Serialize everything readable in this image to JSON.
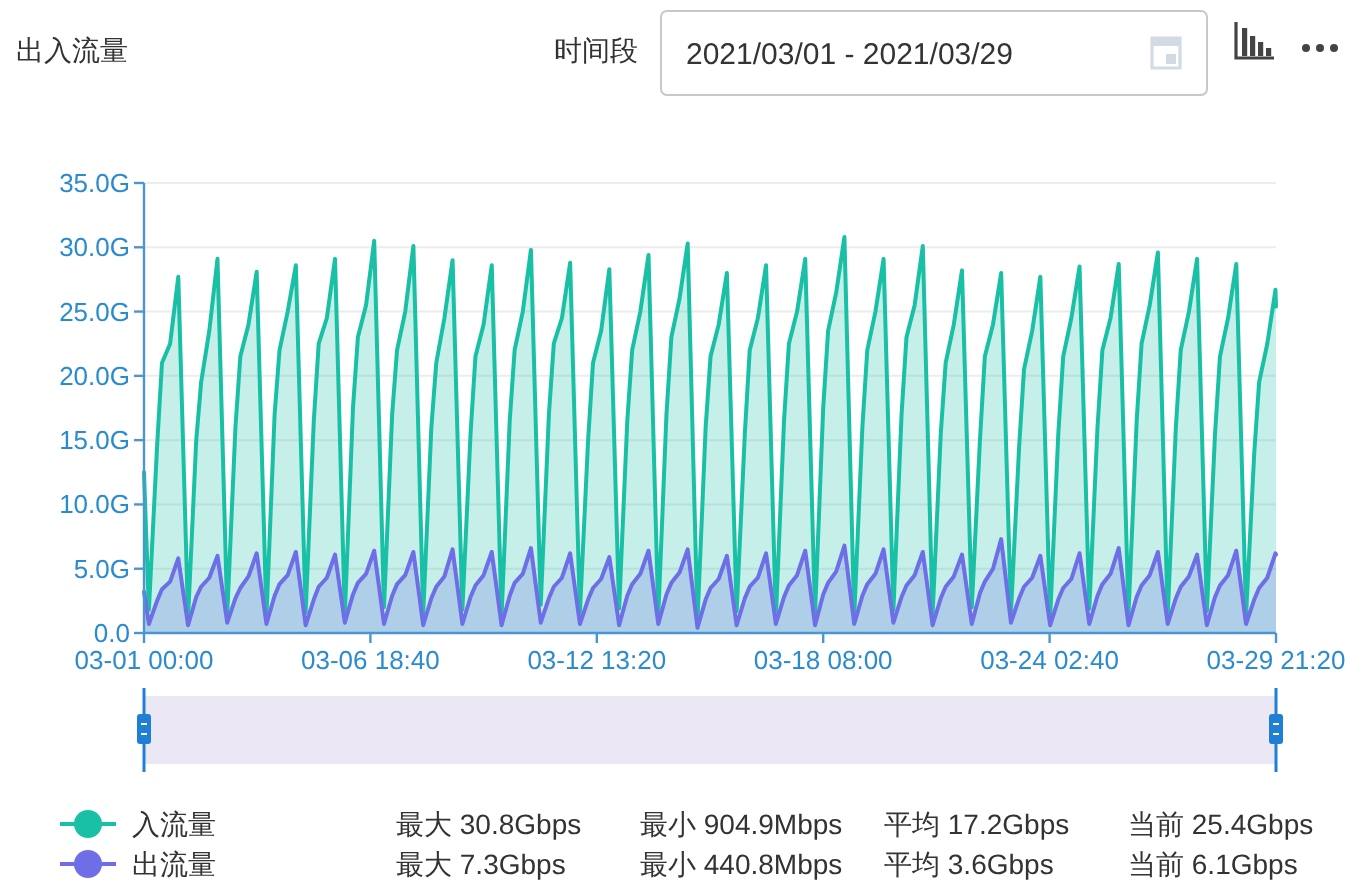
{
  "chart_data": {
    "type": "area",
    "title": "出入流量",
    "annotations": [
      "时间段",
      "2021/03/01 - 2021/03/29",
      "最大 30.8Gbps",
      "最小 904.9Mbps",
      "平均 17.2Gbps",
      "当前 25.4Gbps",
      "最大 7.3Gbps",
      "最小 440.8Mbps",
      "平均 3.6Gbps",
      "当前 6.1Gbps"
    ],
    "x": [
      "2021-03-01T00:00",
      "2021-03-01T03:00",
      "2021-03-01T08:00",
      "2021-03-01T11:00",
      "2021-03-01T16:00",
      "2021-03-01T21:00",
      "2021-03-02T03:00",
      "2021-03-02T08:00",
      "2021-03-02T11:00",
      "2021-03-02T16:00",
      "2021-03-02T21:00",
      "2021-03-03T03:00",
      "2021-03-03T08:00",
      "2021-03-03T11:00",
      "2021-03-03T16:00",
      "2021-03-03T21:00",
      "2021-03-04T03:00",
      "2021-03-04T08:00",
      "2021-03-04T11:00",
      "2021-03-04T16:00",
      "2021-03-04T21:00",
      "2021-03-05T03:00",
      "2021-03-05T08:00",
      "2021-03-05T11:00",
      "2021-03-05T16:00",
      "2021-03-05T21:00",
      "2021-03-06T03:00",
      "2021-03-06T08:00",
      "2021-03-06T11:00",
      "2021-03-06T16:00",
      "2021-03-06T21:00",
      "2021-03-07T03:00",
      "2021-03-07T08:00",
      "2021-03-07T11:00",
      "2021-03-07T16:00",
      "2021-03-07T21:00",
      "2021-03-08T03:00",
      "2021-03-08T08:00",
      "2021-03-08T11:00",
      "2021-03-08T16:00",
      "2021-03-08T21:00",
      "2021-03-09T03:00",
      "2021-03-09T08:00",
      "2021-03-09T11:00",
      "2021-03-09T16:00",
      "2021-03-09T21:00",
      "2021-03-10T03:00",
      "2021-03-10T08:00",
      "2021-03-10T11:00",
      "2021-03-10T16:00",
      "2021-03-10T21:00",
      "2021-03-11T03:00",
      "2021-03-11T08:00",
      "2021-03-11T11:00",
      "2021-03-11T16:00",
      "2021-03-11T21:00",
      "2021-03-12T03:00",
      "2021-03-12T08:00",
      "2021-03-12T11:00",
      "2021-03-12T16:00",
      "2021-03-12T21:00",
      "2021-03-13T03:00",
      "2021-03-13T08:00",
      "2021-03-13T11:00",
      "2021-03-13T16:00",
      "2021-03-13T21:00",
      "2021-03-14T03:00",
      "2021-03-14T08:00",
      "2021-03-14T11:00",
      "2021-03-14T16:00",
      "2021-03-14T21:00",
      "2021-03-15T03:00",
      "2021-03-15T08:00",
      "2021-03-15T11:00",
      "2021-03-15T16:00",
      "2021-03-15T21:00",
      "2021-03-16T03:00",
      "2021-03-16T08:00",
      "2021-03-16T11:00",
      "2021-03-16T16:00",
      "2021-03-16T21:00",
      "2021-03-17T03:00",
      "2021-03-17T08:00",
      "2021-03-17T11:00",
      "2021-03-17T16:00",
      "2021-03-17T21:00",
      "2021-03-18T03:00",
      "2021-03-18T08:00",
      "2021-03-18T11:00",
      "2021-03-18T16:00",
      "2021-03-18T21:00",
      "2021-03-19T03:00",
      "2021-03-19T08:00",
      "2021-03-19T11:00",
      "2021-03-19T16:00",
      "2021-03-19T21:00",
      "2021-03-20T03:00",
      "2021-03-20T08:00",
      "2021-03-20T11:00",
      "2021-03-20T16:00",
      "2021-03-20T21:00",
      "2021-03-21T03:00",
      "2021-03-21T08:00",
      "2021-03-21T11:00",
      "2021-03-21T16:00",
      "2021-03-21T21:00",
      "2021-03-22T03:00",
      "2021-03-22T08:00",
      "2021-03-22T11:00",
      "2021-03-22T16:00",
      "2021-03-22T21:00",
      "2021-03-23T03:00",
      "2021-03-23T08:00",
      "2021-03-23T11:00",
      "2021-03-23T16:00",
      "2021-03-23T21:00",
      "2021-03-24T03:00",
      "2021-03-24T08:00",
      "2021-03-24T11:00",
      "2021-03-24T16:00",
      "2021-03-24T21:00",
      "2021-03-25T03:00",
      "2021-03-25T08:00",
      "2021-03-25T11:00",
      "2021-03-25T16:00",
      "2021-03-25T21:00",
      "2021-03-26T03:00",
      "2021-03-26T08:00",
      "2021-03-26T11:00",
      "2021-03-26T16:00",
      "2021-03-26T21:00",
      "2021-03-27T03:00",
      "2021-03-27T08:00",
      "2021-03-27T11:00",
      "2021-03-27T16:00",
      "2021-03-27T21:00",
      "2021-03-28T03:00",
      "2021-03-28T08:00",
      "2021-03-28T11:00",
      "2021-03-28T16:00",
      "2021-03-28T21:00",
      "2021-03-29T03:00",
      "2021-03-29T08:00",
      "2021-03-29T11:00",
      "2021-03-29T16:00",
      "2021-03-29T21:00",
      "2021-03-29T21:20"
    ],
    "xlim": [
      "2021-03-01T00:00",
      "2021-03-29T21:20"
    ],
    "xticks": [
      {
        "value": "2021-03-01T00:00",
        "label": "03-01 00:00"
      },
      {
        "value": "2021-03-06T18:40",
        "label": "03-06 18:40"
      },
      {
        "value": "2021-03-12T13:20",
        "label": "03-12 13:20"
      },
      {
        "value": "2021-03-18T08:00",
        "label": "03-18 08:00"
      },
      {
        "value": "2021-03-24T02:40",
        "label": "03-24 02:40"
      },
      {
        "value": "2021-03-29T21:20",
        "label": "03-29 21:20"
      }
    ],
    "ylim": [
      0,
      35
    ],
    "yticks": [
      {
        "value": 0,
        "label": "0.0"
      },
      {
        "value": 5,
        "label": "5.0G"
      },
      {
        "value": 10,
        "label": "10.0G"
      },
      {
        "value": 15,
        "label": "15.0G"
      },
      {
        "value": 20,
        "label": "20.0G"
      },
      {
        "value": 25,
        "label": "25.0G"
      },
      {
        "value": 30,
        "label": "30.0G"
      },
      {
        "value": 35,
        "label": "35.0G"
      }
    ],
    "grid": "y",
    "legend": "bottom left",
    "series": [
      {
        "name": "入流量",
        "color": "#19c0a5",
        "values": [
          12.5,
          1.8,
          14.5,
          21.0,
          22.5,
          27.7,
          1.2,
          15.0,
          19.5,
          23.5,
          29.1,
          1.5,
          16.0,
          21.5,
          24.0,
          28.1,
          1.3,
          17.0,
          22.0,
          25.0,
          28.6,
          1.6,
          16.5,
          22.5,
          24.5,
          29.1,
          1.4,
          17.5,
          23.0,
          25.5,
          30.5,
          2.0,
          17.0,
          22.0,
          25.0,
          30.1,
          1.5,
          16.0,
          21.0,
          24.5,
          29.0,
          1.8,
          15.5,
          21.5,
          24.0,
          28.6,
          1.3,
          16.5,
          22.0,
          25.0,
          29.8,
          2.2,
          17.0,
          22.5,
          24.5,
          28.8,
          1.6,
          15.0,
          21.0,
          23.5,
          28.3,
          1.9,
          16.5,
          22.0,
          25.0,
          29.4,
          1.4,
          17.0,
          23.0,
          26.0,
          30.3,
          0.9,
          16.0,
          21.5,
          24.0,
          28.0,
          1.7,
          15.5,
          22.0,
          24.5,
          28.6,
          1.2,
          16.5,
          22.5,
          25.0,
          29.1,
          1.5,
          17.5,
          23.5,
          26.5,
          30.8,
          1.3,
          16.0,
          22.0,
          25.0,
          29.1,
          1.8,
          17.0,
          23.0,
          25.5,
          30.1,
          1.4,
          15.5,
          21.0,
          24.0,
          28.2,
          2.0,
          15.0,
          21.5,
          24.0,
          28.0,
          1.6,
          14.5,
          20.5,
          23.5,
          27.7,
          1.2,
          15.5,
          21.5,
          24.5,
          28.5,
          1.9,
          16.0,
          22.0,
          24.5,
          28.7,
          1.5,
          16.5,
          22.5,
          25.5,
          29.6,
          1.3,
          16.0,
          22.0,
          25.0,
          29.1,
          1.7,
          15.5,
          21.5,
          24.5,
          28.7,
          1.4,
          14.0,
          19.5,
          22.5,
          26.7,
          25.4
        ]
      },
      {
        "name": "出流量",
        "color": "#6e6ee6",
        "values": [
          3.2,
          0.7,
          2.5,
          3.4,
          4.0,
          5.8,
          0.6,
          2.8,
          3.6,
          4.3,
          6.0,
          0.8,
          2.7,
          3.5,
          4.4,
          6.2,
          0.7,
          2.9,
          3.8,
          4.5,
          6.3,
          0.6,
          2.6,
          3.6,
          4.3,
          6.1,
          0.8,
          3.0,
          3.9,
          4.6,
          6.4,
          0.7,
          2.9,
          3.8,
          4.5,
          6.3,
          0.6,
          2.7,
          3.6,
          4.4,
          6.5,
          0.7,
          2.8,
          3.7,
          4.5,
          6.3,
          0.6,
          2.9,
          3.9,
          4.6,
          6.6,
          0.8,
          2.7,
          3.6,
          4.3,
          6.2,
          0.7,
          2.6,
          3.5,
          4.2,
          5.9,
          0.6,
          2.9,
          3.8,
          4.6,
          6.4,
          0.7,
          3.0,
          3.9,
          4.7,
          6.5,
          0.4,
          2.6,
          3.5,
          4.2,
          6.0,
          0.6,
          2.7,
          3.6,
          4.3,
          6.2,
          0.7,
          2.8,
          3.7,
          4.5,
          6.4,
          0.6,
          3.0,
          3.9,
          4.8,
          6.8,
          0.7,
          2.9,
          3.8,
          4.6,
          6.5,
          0.8,
          2.8,
          3.7,
          4.5,
          6.3,
          0.6,
          2.7,
          3.6,
          4.4,
          6.1,
          0.7,
          3.1,
          4.0,
          5.0,
          7.3,
          0.8,
          2.7,
          3.6,
          4.3,
          6.0,
          0.6,
          2.6,
          3.5,
          4.2,
          6.2,
          0.7,
          2.9,
          3.8,
          4.6,
          6.6,
          0.6,
          2.8,
          3.7,
          4.5,
          6.3,
          0.7,
          2.7,
          3.6,
          4.4,
          6.1,
          0.6,
          2.8,
          3.7,
          4.5,
          6.4,
          0.7,
          2.6,
          3.5,
          4.3,
          6.2,
          6.1
        ]
      }
    ]
  }
}
